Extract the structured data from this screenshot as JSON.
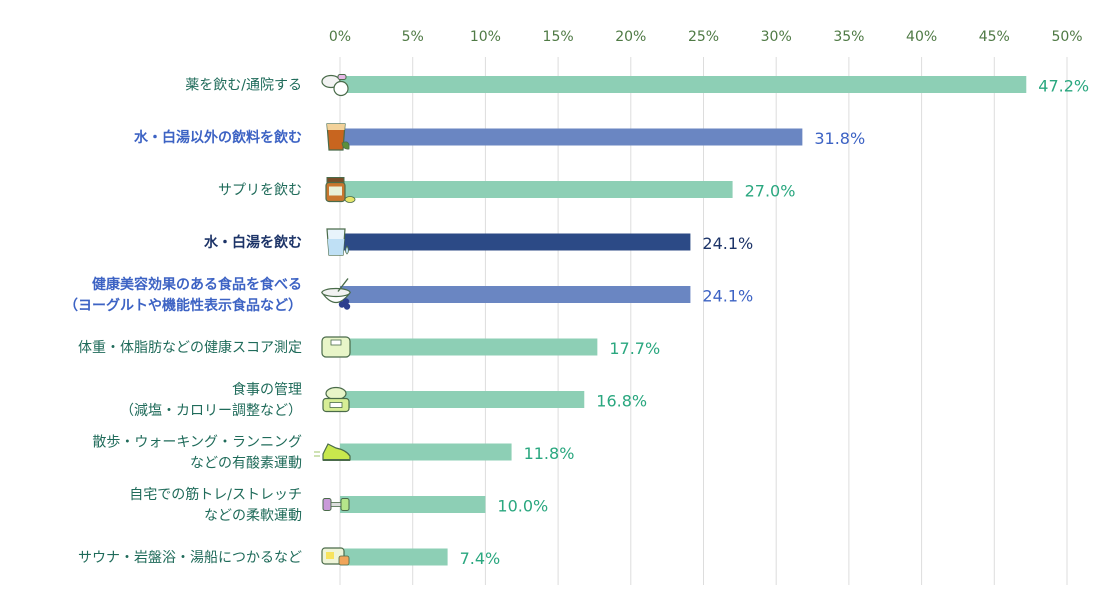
{
  "chart_data": {
    "type": "bar",
    "orientation": "horizontal",
    "xlim": [
      0,
      50
    ],
    "ticks": [
      0,
      5,
      10,
      15,
      20,
      25,
      30,
      35,
      40,
      45,
      50
    ],
    "tick_labels": [
      "0%",
      "5%",
      "10%",
      "15%",
      "20%",
      "25%",
      "30%",
      "35%",
      "40%",
      "45%",
      "50%"
    ],
    "grid": true,
    "categories": [
      {
        "lines": [
          "薬を飲む/通院する"
        ],
        "value": 47.2,
        "label": "47.2%",
        "style": "normal",
        "icon": "pills-icon"
      },
      {
        "lines": [
          "水・白湯以外の飲料を飲む"
        ],
        "value": 31.8,
        "label": "31.8%",
        "style": "highlight",
        "icon": "drink-glass-icon"
      },
      {
        "lines": [
          "サプリを飲む"
        ],
        "value": 27.0,
        "label": "27.0%",
        "style": "normal",
        "icon": "supplement-bottle-icon"
      },
      {
        "lines": [
          "水・白湯を飲む"
        ],
        "value": 24.1,
        "label": "24.1%",
        "style": "dark",
        "icon": "water-glass-icon"
      },
      {
        "lines": [
          "健康美容効果のある食品を食べる",
          "（ヨーグルトや機能性表示食品など）"
        ],
        "value": 24.1,
        "label": "24.1%",
        "style": "highlight",
        "icon": "yogurt-bowl-icon"
      },
      {
        "lines": [
          "体重・体脂肪などの健康スコア測定"
        ],
        "value": 17.7,
        "label": "17.7%",
        "style": "normal",
        "icon": "scale-icon"
      },
      {
        "lines": [
          "食事の管理",
          "（減塩・カロリー調整など）"
        ],
        "value": 16.8,
        "label": "16.8%",
        "style": "normal",
        "icon": "kitchen-scale-icon"
      },
      {
        "lines": [
          "散歩・ウォーキング・ランニング",
          "などの有酸素運動"
        ],
        "value": 11.8,
        "label": "11.8%",
        "style": "normal",
        "icon": "sneaker-icon"
      },
      {
        "lines": [
          "自宅での筋トレ/ストレッチ",
          "などの柔軟運動"
        ],
        "value": 10.0,
        "label": "10.0%",
        "style": "normal",
        "icon": "dumbbell-icon"
      },
      {
        "lines": [
          "サウナ・岩盤浴・湯船につかるなど"
        ],
        "value": 7.4,
        "label": "7.4%",
        "style": "normal",
        "icon": "bath-icon"
      }
    ],
    "colors": {
      "normal_bar": "#8dcfb5",
      "normal_label": "#1f6b5a",
      "normal_value": "#2aa77f",
      "highlight_bar": "#6a86c2",
      "highlight_label": "#3d63c4",
      "highlight_value": "#3d63c4",
      "dark_bar": "#2c4a86",
      "dark_label": "#1d3468",
      "dark_value": "#1d3468",
      "tick": "#4f7a45",
      "grid": "#dddddd"
    }
  }
}
